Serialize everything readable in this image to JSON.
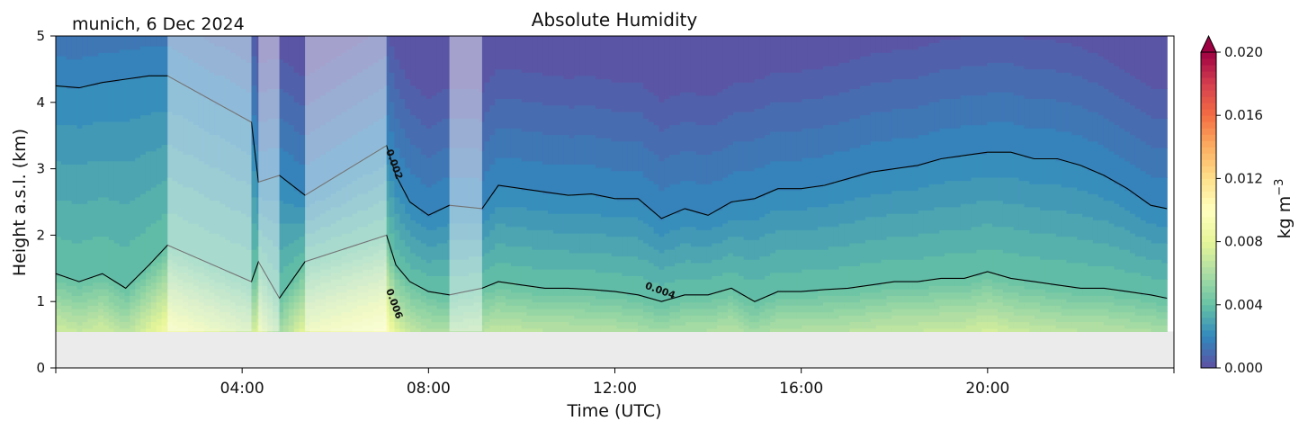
{
  "chart_data": {
    "type": "heatmap",
    "title": "Absolute Humidity",
    "subtitle": "munich, 6 Dec 2024",
    "xlabel": "Time (UTC)",
    "ylabel": "Height a.s.l. (km)",
    "xlim": [
      0,
      24
    ],
    "ylim": [
      0,
      5
    ],
    "x_ticks": [
      4,
      8,
      12,
      16,
      20
    ],
    "x_tick_labels": [
      "04:00",
      "08:00",
      "12:00",
      "16:00",
      "20:00"
    ],
    "y_ticks": [
      0,
      1,
      2,
      3,
      4,
      5
    ],
    "y_tick_labels": [
      "0",
      "1",
      "2",
      "3",
      "4",
      "5"
    ],
    "colorbar": {
      "label": "kg m",
      "label_sup": "−3",
      "min": 0.0,
      "max": 0.02,
      "extend": "max",
      "ticks": [
        0.0,
        0.004,
        0.008,
        0.012,
        0.016,
        0.02
      ],
      "tick_labels": [
        "0.000",
        "0.004",
        "0.008",
        "0.012",
        "0.016",
        "0.020"
      ]
    },
    "data_bottom_km": 0.55,
    "masked_periods_utc": [
      [
        2.4,
        4.2
      ],
      [
        4.35,
        4.8
      ],
      [
        5.35,
        7.1
      ],
      [
        8.45,
        9.15
      ]
    ],
    "contour_labels": [
      {
        "text": "0.002",
        "x": 7.2,
        "y": 3.05
      },
      {
        "text": "0.006",
        "x": 7.2,
        "y": 0.95
      },
      {
        "text": "0.004",
        "x": 12.95,
        "y": 1.12
      }
    ],
    "contours": [
      {
        "level": 0.002,
        "x": [
          0,
          0.5,
          1,
          1.5,
          2,
          2.4,
          4.2,
          4.35,
          4.8,
          5.35,
          7.1,
          7.3,
          7.6,
          8.0,
          8.45,
          9.15,
          9.5,
          10,
          10.5,
          11,
          11.5,
          12,
          12.5,
          13,
          13.5,
          14,
          14.5,
          15,
          15.5,
          16,
          16.5,
          17,
          17.5,
          18,
          18.5,
          19,
          19.5,
          20,
          20.5,
          21,
          21.5,
          22,
          22.5,
          23,
          23.5,
          23.85
        ],
        "y": [
          4.25,
          4.22,
          4.3,
          4.35,
          4.4,
          4.4,
          3.7,
          2.8,
          2.9,
          2.6,
          3.35,
          2.9,
          2.5,
          2.3,
          2.45,
          2.4,
          2.75,
          2.7,
          2.65,
          2.6,
          2.62,
          2.55,
          2.55,
          2.25,
          2.4,
          2.3,
          2.5,
          2.55,
          2.7,
          2.7,
          2.75,
          2.85,
          2.95,
          3.0,
          3.05,
          3.15,
          3.2,
          3.25,
          3.25,
          3.15,
          3.15,
          3.05,
          2.9,
          2.7,
          2.45,
          2.4
        ]
      },
      {
        "level": 0.004,
        "x": [
          0,
          0.5,
          1,
          1.5,
          2,
          2.4,
          4.2,
          4.35,
          4.8,
          5.35,
          7.1,
          7.3,
          7.6,
          8.0,
          8.45,
          9.15,
          9.5,
          10,
          10.5,
          11,
          11.5,
          12,
          12.5,
          13,
          13.5,
          14,
          14.5,
          15,
          15.5,
          16,
          16.5,
          17,
          17.5,
          18,
          18.5,
          19,
          19.5,
          20,
          20.5,
          21,
          21.5,
          22,
          22.5,
          23,
          23.5,
          23.85
        ],
        "y": [
          1.42,
          1.3,
          1.42,
          1.2,
          1.55,
          1.85,
          1.3,
          1.6,
          1.05,
          1.6,
          2.0,
          1.55,
          1.3,
          1.15,
          1.1,
          1.2,
          1.3,
          1.25,
          1.2,
          1.2,
          1.18,
          1.15,
          1.1,
          1.0,
          1.1,
          1.1,
          1.2,
          1.0,
          1.15,
          1.15,
          1.18,
          1.2,
          1.25,
          1.3,
          1.3,
          1.35,
          1.35,
          1.45,
          1.35,
          1.3,
          1.25,
          1.2,
          1.2,
          1.15,
          1.1,
          1.05
        ]
      }
    ]
  }
}
